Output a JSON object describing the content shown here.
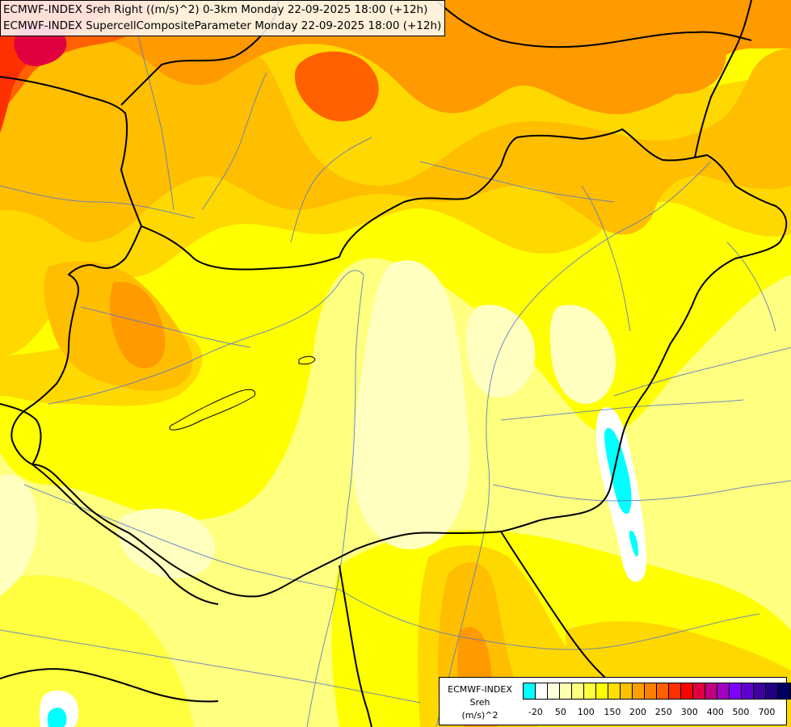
{
  "titles": [
    "ECMWF-INDEX Sreh Right ((m/s)^2) 0-3km Monday 22-09-2025 18:00 (+12h)",
    "ECMWF-INDEX SupercellCompositeParameter Monday 22-09-2025 18:00 (+12h)"
  ],
  "legend": {
    "line1": "ECMWF-INDEX",
    "line2": "Sreh",
    "line3": "(m/s)^2",
    "colors": [
      "#00ffff",
      "#ffffff",
      "#ffffe0",
      "#ffffb0",
      "#ffff80",
      "#ffff40",
      "#ffff00",
      "#ffe000",
      "#ffc000",
      "#ffa000",
      "#ff8000",
      "#ff6000",
      "#ff3000",
      "#ff0000",
      "#e00040",
      "#c00080",
      "#a000c0",
      "#8000ff",
      "#6000d0",
      "#4000a0",
      "#200080",
      "#000060"
    ],
    "ticks": [
      {
        "label": "-20",
        "pos": 0.048
      },
      {
        "label": "50",
        "pos": 0.142
      },
      {
        "label": "100",
        "pos": 0.237
      },
      {
        "label": "150",
        "pos": 0.336
      },
      {
        "label": "200",
        "pos": 0.432
      },
      {
        "label": "250",
        "pos": 0.528
      },
      {
        "label": "300",
        "pos": 0.625
      },
      {
        "label": "400",
        "pos": 0.722
      },
      {
        "label": "500",
        "pos": 0.818
      },
      {
        "label": "700",
        "pos": 0.915
      }
    ]
  },
  "map_colors": {
    "red": "#ff3000",
    "dark_orange": "#ff6000",
    "orange": "#ff9a00",
    "light_orange": "#ffbe00",
    "gold": "#ffd800",
    "yellow": "#ffff00",
    "pale_yellow": "#ffff80",
    "cream": "#ffffc0",
    "cyan": "#00ffff",
    "border": "#000000",
    "river": "#5a78c8"
  }
}
